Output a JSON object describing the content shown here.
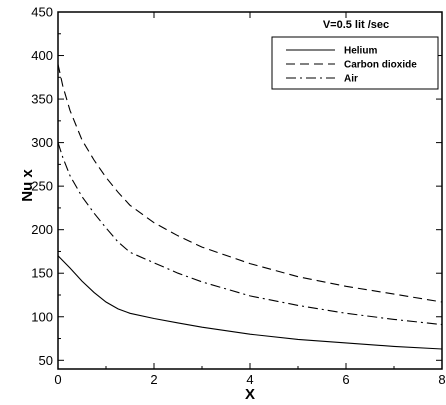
{
  "chart_data": {
    "type": "line",
    "title": "",
    "annotation": "V=0.5 lit /sec",
    "xlabel": "X",
    "ylabel": "Nu x",
    "xlim": [
      0,
      8
    ],
    "ylim": [
      40,
      450
    ],
    "x_ticks": [
      0,
      2,
      4,
      6,
      8
    ],
    "y_ticks": [
      50,
      100,
      150,
      200,
      250,
      300,
      350,
      400,
      450
    ],
    "grid": false,
    "legend_position": "top-right",
    "series": [
      {
        "name": "Helium",
        "dash": "solid",
        "x": [
          0,
          0.25,
          0.5,
          0.75,
          1.0,
          1.25,
          1.5,
          2.0,
          2.5,
          3.0,
          4.0,
          5.0,
          6.0,
          7.0,
          8.0
        ],
        "y": [
          170,
          156,
          141,
          128,
          117,
          109,
          104,
          98,
          93,
          88,
          80,
          74,
          70,
          66,
          63
        ]
      },
      {
        "name": "Carbon dioxide",
        "dash": "dashed",
        "x": [
          0,
          0.1,
          0.25,
          0.5,
          0.75,
          1.0,
          1.25,
          1.5,
          2.0,
          2.5,
          3.0,
          4.0,
          5.0,
          6.0,
          7.0,
          8.0
        ],
        "y": [
          390,
          365,
          337,
          303,
          280,
          260,
          243,
          228,
          208,
          193,
          180,
          161,
          146,
          135,
          126,
          117
        ]
      },
      {
        "name": "Air",
        "dash": "dashdot",
        "x": [
          0,
          0.1,
          0.25,
          0.5,
          0.75,
          1.0,
          1.25,
          1.5,
          2.0,
          2.5,
          3.0,
          4.0,
          5.0,
          6.0,
          7.0,
          8.0
        ],
        "y": [
          300,
          283,
          262,
          238,
          219,
          202,
          186,
          174,
          162,
          150,
          140,
          124,
          113,
          104,
          97,
          91
        ]
      }
    ]
  }
}
